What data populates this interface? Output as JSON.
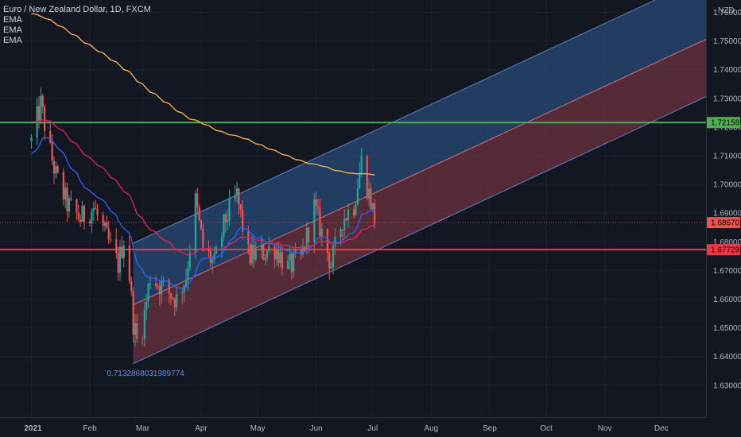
{
  "legend": {
    "title": "Euro / New Zealand Dollar, 1D, FXCM",
    "indicators": [
      "EMA",
      "EMA",
      "EMA"
    ]
  },
  "price_axis": {
    "currency": "NZD",
    "labels": [
      "1.76000",
      "1.75000",
      "1.74000",
      "1.73000",
      "1.72000",
      "1.71000",
      "1.70000",
      "1.69000",
      "1.68000",
      "1.67000",
      "1.66000",
      "1.65000",
      "1.64000",
      "1.63000"
    ]
  },
  "time_axis": {
    "labels": [
      "2021",
      "Feb",
      "Mar",
      "Apr",
      "May",
      "Jun",
      "Jul",
      "Aug",
      "Sep",
      "Oct",
      "Nov",
      "Dec"
    ]
  },
  "price_tags": [
    {
      "name": "green-resistance-tag",
      "value": "1.72158",
      "color": "#4caf50"
    },
    {
      "name": "current-price-tag",
      "value": "1.68670",
      "color": "#ef5350"
    },
    {
      "name": "red-support-tag",
      "value": "1.67729",
      "color": "#f23645"
    }
  ],
  "annotation": "0.7132868031989774",
  "colors": {
    "background": "#131722",
    "up": "#26a69a",
    "down": "#ef5350",
    "ema_short": "#2962ff",
    "ema_mid": "#e91e63",
    "ema_long": "#ffb74d",
    "channel_upper_fill": "#2a4a78",
    "channel_lower_fill": "#6e3340",
    "horizontal_green": "#4caf50",
    "horizontal_red": "#f23645"
  },
  "chart_data": {
    "type": "candlestick",
    "title": "Euro / New Zealand Dollar, 1D, FXCM",
    "ylim": [
      1.625,
      1.77
    ],
    "horizontal_levels": [
      1.72158,
      1.67729
    ],
    "last_price": 1.6867,
    "channel": {
      "lower": [
        [
          "2021-02-24",
          1.6375
        ],
        [
          "2021-12-31",
          1.7325
        ]
      ],
      "mid": [
        [
          "2021-02-24",
          1.658
        ],
        [
          "2021-12-31",
          1.7525
        ]
      ],
      "upper": [
        [
          "2021-02-24",
          1.6795
        ],
        [
          "2021-12-31",
          1.7745
        ]
      ]
    },
    "price_path": [
      [
        "2021-01-01",
        1.715
      ],
      [
        "2021-01-06",
        1.728
      ],
      [
        "2021-01-10",
        1.714
      ],
      [
        "2021-01-14",
        1.703
      ],
      [
        "2021-01-20",
        1.693
      ],
      [
        "2021-01-27",
        1.688
      ],
      [
        "2021-02-03",
        1.692
      ],
      [
        "2021-02-10",
        1.681
      ],
      [
        "2021-02-16",
        1.672
      ],
      [
        "2021-02-20",
        1.684
      ],
      [
        "2021-02-24",
        1.652
      ],
      [
        "2021-02-27",
        1.642
      ],
      [
        "2021-03-05",
        1.668
      ],
      [
        "2021-03-12",
        1.664
      ],
      [
        "2021-03-19",
        1.66
      ],
      [
        "2021-03-24",
        1.668
      ],
      [
        "2021-03-29",
        1.694
      ],
      [
        "2021-04-02",
        1.678
      ],
      [
        "2021-04-08",
        1.672
      ],
      [
        "2021-04-14",
        1.688
      ],
      [
        "2021-04-20",
        1.696
      ],
      [
        "2021-04-26",
        1.675
      ],
      [
        "2021-05-03",
        1.676
      ],
      [
        "2021-05-10",
        1.678
      ],
      [
        "2021-05-17",
        1.671
      ],
      [
        "2021-05-24",
        1.674
      ],
      [
        "2021-05-31",
        1.692
      ],
      [
        "2021-06-04",
        1.683
      ],
      [
        "2021-06-09",
        1.672
      ],
      [
        "2021-06-15",
        1.688
      ],
      [
        "2021-06-21",
        1.693
      ],
      [
        "2021-06-25",
        1.708
      ],
      [
        "2021-06-30",
        1.694
      ],
      [
        "2021-07-02",
        1.688
      ],
      [
        "2021-07-04",
        1.6867
      ]
    ]
  }
}
